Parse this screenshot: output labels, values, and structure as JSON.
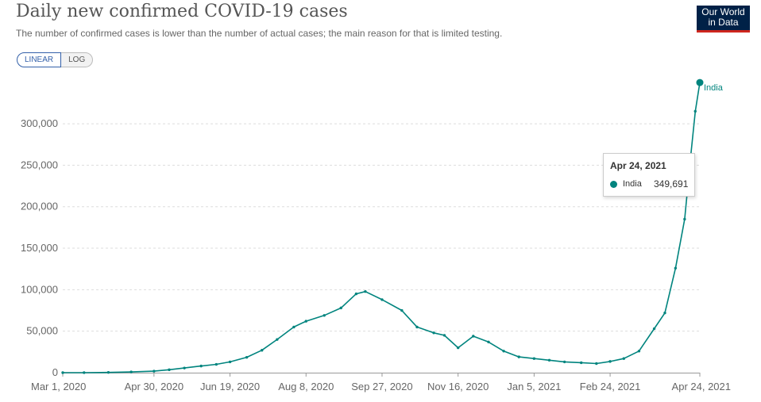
{
  "header": {
    "title": "Daily new confirmed COVID-19 cases",
    "subtitle": "The number of confirmed cases is lower than the number of actual cases; the main reason for that is limited testing.",
    "logo_line1": "Our World",
    "logo_line2": "in Data"
  },
  "scale_toggle": {
    "linear_label": "LINEAR",
    "log_label": "LOG",
    "selected": "LINEAR"
  },
  "tooltip": {
    "date": "Apr 24, 2021",
    "series": "India",
    "value": "349,691"
  },
  "colors": {
    "series": "#00847e",
    "grid": "#dddddd",
    "axis_text": "#666666"
  },
  "chart_data": {
    "type": "line",
    "title": "Daily new confirmed COVID-19 cases",
    "xlabel": "",
    "ylabel": "",
    "ylim": [
      0,
      350000
    ],
    "yticks": [
      0,
      50000,
      100000,
      150000,
      200000,
      250000,
      300000
    ],
    "ytick_labels": [
      "0",
      "50,000",
      "100,000",
      "150,000",
      "200,000",
      "250,000",
      "300,000"
    ],
    "xlim": [
      "2020-03-01",
      "2021-04-24"
    ],
    "xticks": [
      "2020-03-01",
      "2020-04-30",
      "2020-06-19",
      "2020-08-08",
      "2020-09-27",
      "2020-11-16",
      "2021-01-05",
      "2021-02-24",
      "2021-04-24"
    ],
    "xtick_labels": [
      "Mar 1, 2020",
      "Apr 30, 2020",
      "Jun 19, 2020",
      "Aug 8, 2020",
      "Sep 27, 2020",
      "Nov 16, 2020",
      "Jan 5, 2021",
      "Feb 24, 2021",
      "Apr 24, 2021"
    ],
    "grid": true,
    "series": [
      {
        "name": "India",
        "points": [
          [
            "2020-03-01",
            0
          ],
          [
            "2020-03-15",
            20
          ],
          [
            "2020-03-31",
            300
          ],
          [
            "2020-04-15",
            900
          ],
          [
            "2020-04-30",
            1800
          ],
          [
            "2020-05-10",
            3500
          ],
          [
            "2020-05-20",
            5600
          ],
          [
            "2020-05-31",
            8000
          ],
          [
            "2020-06-10",
            10000
          ],
          [
            "2020-06-19",
            13000
          ],
          [
            "2020-06-30",
            18500
          ],
          [
            "2020-07-10",
            27000
          ],
          [
            "2020-07-20",
            40000
          ],
          [
            "2020-07-31",
            55000
          ],
          [
            "2020-08-08",
            62000
          ],
          [
            "2020-08-20",
            69000
          ],
          [
            "2020-08-31",
            78000
          ],
          [
            "2020-09-10",
            95000
          ],
          [
            "2020-09-16",
            97800
          ],
          [
            "2020-09-27",
            88000
          ],
          [
            "2020-10-10",
            75000
          ],
          [
            "2020-10-20",
            55000
          ],
          [
            "2020-10-31",
            48000
          ],
          [
            "2020-11-07",
            45000
          ],
          [
            "2020-11-16",
            30000
          ],
          [
            "2020-11-26",
            44000
          ],
          [
            "2020-12-06",
            37000
          ],
          [
            "2020-12-16",
            26000
          ],
          [
            "2020-12-26",
            19000
          ],
          [
            "2021-01-05",
            17000
          ],
          [
            "2021-01-15",
            15000
          ],
          [
            "2021-01-25",
            13000
          ],
          [
            "2021-02-05",
            12000
          ],
          [
            "2021-02-15",
            11000
          ],
          [
            "2021-02-24",
            13500
          ],
          [
            "2021-03-05",
            17000
          ],
          [
            "2021-03-15",
            26000
          ],
          [
            "2021-03-25",
            53000
          ],
          [
            "2021-04-01",
            72000
          ],
          [
            "2021-04-08",
            126000
          ],
          [
            "2021-04-14",
            185000
          ],
          [
            "2021-04-18",
            261000
          ],
          [
            "2021-04-21",
            315000
          ],
          [
            "2021-04-24",
            349691
          ]
        ]
      }
    ],
    "annotations": [
      {
        "text": "India",
        "x": "2021-04-24",
        "y": 349691
      }
    ]
  }
}
